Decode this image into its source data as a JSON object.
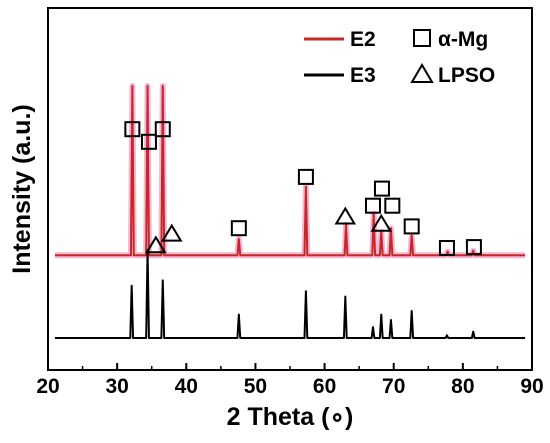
{
  "chart_data": {
    "type": "line",
    "title": "",
    "xlabel": "2 Theta (∘)",
    "ylabel": "Intensity (a.u.)",
    "xlim": [
      20,
      90
    ],
    "xticks": [
      20,
      30,
      40,
      50,
      60,
      70,
      80,
      90
    ],
    "ylim": [
      0,
      12
    ],
    "yticks_shown": false,
    "grid": false,
    "legend_position": "top-right",
    "colors": {
      "E2": "#c62828",
      "E3": "#000000",
      "E2_glow": "#f4b7d6"
    },
    "legend": {
      "series": [
        {
          "name": "E2",
          "color": "#c62828"
        },
        {
          "name": "E3",
          "color": "#000000"
        }
      ],
      "markers": [
        {
          "symbol": "square",
          "label": "α-Mg"
        },
        {
          "symbol": "triangle",
          "label": "LPSO"
        }
      ]
    },
    "series": [
      {
        "name": "E2",
        "baseline": 4.6,
        "peaks": [
          {
            "x": 32.2,
            "y": 14.0
          },
          {
            "x": 34.4,
            "y": 14.0
          },
          {
            "x": 36.6,
            "y": 14.0
          },
          {
            "x": 47.6,
            "y": 5.5
          },
          {
            "x": 57.3,
            "y": 8.4
          },
          {
            "x": 63.1,
            "y": 6.3
          },
          {
            "x": 67.1,
            "y": 6.9
          },
          {
            "x": 68.2,
            "y": 5.9
          },
          {
            "x": 69.6,
            "y": 6.1
          },
          {
            "x": 72.6,
            "y": 5.7
          },
          {
            "x": 77.8,
            "y": 4.8
          },
          {
            "x": 81.5,
            "y": 4.85
          }
        ]
      },
      {
        "name": "E3",
        "baseline": 0.0,
        "peaks": [
          {
            "x": 32.1,
            "y": 2.9
          },
          {
            "x": 34.4,
            "y": 4.9
          },
          {
            "x": 36.6,
            "y": 3.2
          },
          {
            "x": 47.6,
            "y": 1.3
          },
          {
            "x": 57.3,
            "y": 2.6
          },
          {
            "x": 63.0,
            "y": 2.3
          },
          {
            "x": 67.0,
            "y": 0.6
          },
          {
            "x": 68.2,
            "y": 1.3
          },
          {
            "x": 69.6,
            "y": 1.0
          },
          {
            "x": 72.6,
            "y": 1.5
          },
          {
            "x": 77.7,
            "y": 0.15
          },
          {
            "x": 81.5,
            "y": 0.35
          }
        ]
      }
    ],
    "annotations": [
      {
        "symbol": "square",
        "x": 32.2,
        "y": 11.6
      },
      {
        "symbol": "square",
        "x": 34.6,
        "y": 10.9
      },
      {
        "symbol": "square",
        "x": 36.6,
        "y": 11.6
      },
      {
        "symbol": "triangle",
        "x": 35.6,
        "y": 5.15
      },
      {
        "symbol": "triangle",
        "x": 37.9,
        "y": 5.8
      },
      {
        "symbol": "square",
        "x": 47.6,
        "y": 6.1
      },
      {
        "symbol": "square",
        "x": 57.3,
        "y": 8.95
      },
      {
        "symbol": "triangle",
        "x": 63.0,
        "y": 6.75
      },
      {
        "symbol": "square",
        "x": 67.0,
        "y": 7.35
      },
      {
        "symbol": "square",
        "x": 68.3,
        "y": 8.3
      },
      {
        "symbol": "triangle",
        "x": 68.2,
        "y": 6.35
      },
      {
        "symbol": "square",
        "x": 69.8,
        "y": 7.35
      },
      {
        "symbol": "square",
        "x": 72.6,
        "y": 6.2
      },
      {
        "symbol": "square",
        "x": 77.7,
        "y": 5.0
      },
      {
        "symbol": "square",
        "x": 81.6,
        "y": 5.05
      }
    ]
  }
}
